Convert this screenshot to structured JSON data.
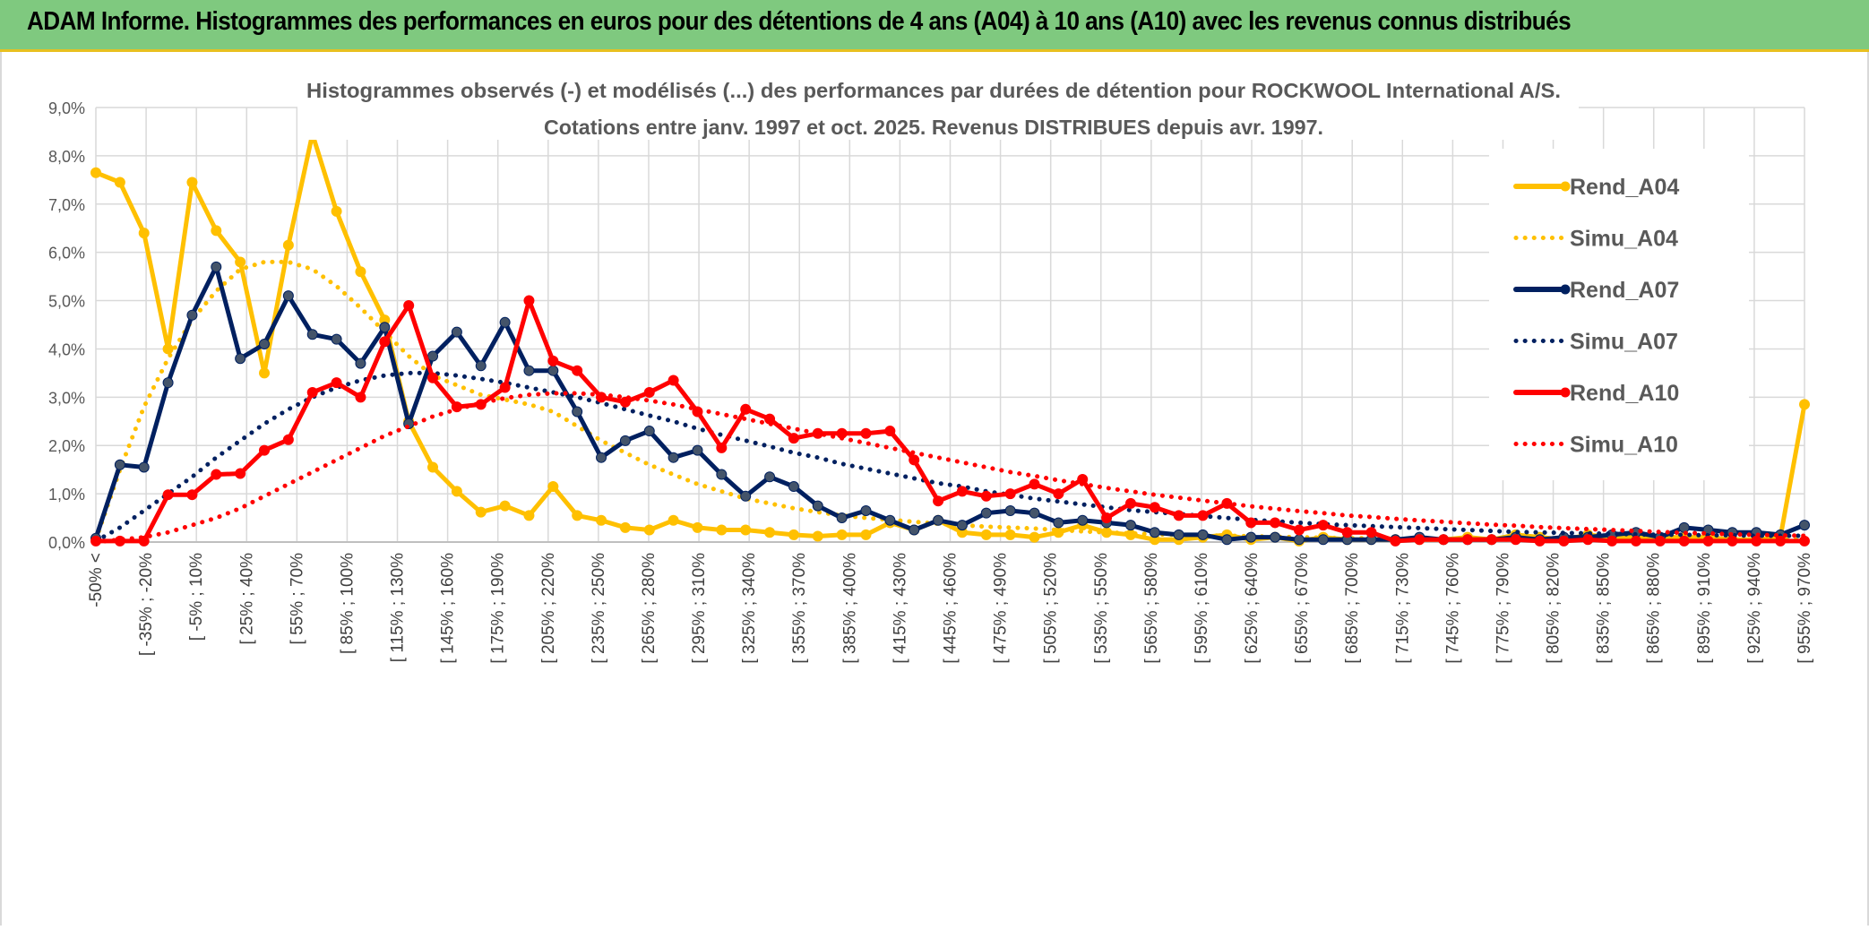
{
  "header": {
    "title": "ADAM Informe. Histogrammes des performances en euros pour des détentions de 4 ans (A04) à 10 ans (A10) avec les revenus connus distribués"
  },
  "chart_data": {
    "type": "line",
    "title": "Histogrammes observés (-) et modélisés (...) des performances par durées de détention pour ROCKWOOL International A/S.",
    "subtitle": "Cotations entre janv. 1997 et oct. 2025. Revenus DISTRIBUES depuis avr. 1997.",
    "xlabel": "",
    "ylabel": "",
    "ylim": [
      0,
      9
    ],
    "yticks": [
      "0,0%",
      "1,0%",
      "2,0%",
      "3,0%",
      "4,0%",
      "5,0%",
      "6,0%",
      "7,0%",
      "8,0%",
      "9,0%"
    ],
    "grid": true,
    "legend_position": "right",
    "x_tick_labels": [
      "-50% <",
      "[ -35% ; -20%",
      "[ -5% ; 10%",
      "[ 25% ; 40%",
      "[ 55% ; 70%",
      "[ 85% ; 100%",
      "[ 115% ; 130%",
      "[ 145% ; 160%",
      "[ 175% ; 190%",
      "[ 205% ; 220%",
      "[ 235% ; 250%",
      "[ 265% ; 280%",
      "[ 295% ; 310%",
      "[ 325% ; 340%",
      "[ 355% ; 370%",
      "[ 385% ; 400%",
      "[ 415% ; 430%",
      "[ 445% ; 460%",
      "[ 475% ; 490%",
      "[ 505% ; 520%",
      "[ 535% ; 550%",
      "[ 565% ; 580%",
      "[ 595% ; 610%",
      "[ 625% ; 640%",
      "[ 655% ; 670%",
      "[ 685% ; 700%",
      "[ 715% ; 730%",
      "[ 745% ; 760%",
      "[ 775% ; 790%",
      "[ 805% ; 820%",
      "[ 835% ; 850%",
      "[ 865% ; 880%",
      "[ 895% ; 910%",
      "[ 925% ; 940%",
      "[ 955% ; 970%"
    ],
    "series": [
      {
        "name": "Rend_A04",
        "color": "#ffc000",
        "style": "solid",
        "markers": true,
        "values": [
          7.65,
          7.45,
          6.4,
          4.0,
          7.45,
          6.45,
          5.8,
          3.5,
          6.15,
          8.45,
          6.85,
          5.6,
          4.6,
          2.5,
          1.55,
          1.05,
          0.62,
          0.75,
          0.55,
          1.15,
          0.55,
          0.45,
          0.3,
          0.25,
          0.45,
          0.3,
          0.25,
          0.25,
          0.2,
          0.15,
          0.12,
          0.15,
          0.15,
          0.4,
          0.25,
          0.45,
          0.2,
          0.15,
          0.15,
          0.1,
          0.2,
          0.35,
          0.2,
          0.15,
          0.05,
          0.05,
          0.1,
          0.15,
          0.05,
          0.1,
          0.02,
          0.1,
          0.05,
          0.05,
          0.05,
          0.05,
          0.05,
          0.1,
          0.05,
          0.15,
          0.1,
          0.05,
          0.15,
          0.1,
          0.1,
          0.1,
          0.1,
          0.1,
          0.05,
          0.05,
          0.1,
          2.85
        ]
      },
      {
        "name": "Simu_A04",
        "color": "#ffc000",
        "style": "dotted",
        "markers": false,
        "values": [
          0.05,
          1.5,
          2.8,
          3.8,
          4.6,
          5.2,
          5.65,
          5.8,
          5.8,
          5.65,
          5.3,
          4.85,
          4.35,
          3.85,
          3.45,
          3.25,
          3.05,
          2.95,
          2.85,
          2.7,
          2.4,
          2.1,
          1.85,
          1.6,
          1.4,
          1.2,
          1.05,
          0.9,
          0.8,
          0.7,
          0.62,
          0.55,
          0.5,
          0.46,
          0.42,
          0.38,
          0.35,
          0.32,
          0.3,
          0.28,
          0.25,
          0.22,
          0.2,
          0.18,
          0.16,
          0.15,
          0.14,
          0.13,
          0.12,
          0.11,
          0.1,
          0.09,
          0.08,
          0.08,
          0.07,
          0.07,
          0.06,
          0.06,
          0.05,
          0.05,
          0.05,
          0.05,
          0.05,
          0.05,
          0.05,
          0.05,
          0.05,
          0.05,
          0.05,
          0.05,
          0.05,
          0.05
        ]
      },
      {
        "name": "Rend_A07",
        "color": "#002060",
        "style": "solid",
        "markers": true,
        "values": [
          0.08,
          1.6,
          1.55,
          3.3,
          4.7,
          5.7,
          3.8,
          4.1,
          5.1,
          4.3,
          4.2,
          3.7,
          4.45,
          2.45,
          3.85,
          4.35,
          3.65,
          4.55,
          3.55,
          3.55,
          2.7,
          1.75,
          2.1,
          2.3,
          1.75,
          1.9,
          1.4,
          0.95,
          1.35,
          1.15,
          0.75,
          0.5,
          0.65,
          0.45,
          0.25,
          0.45,
          0.35,
          0.6,
          0.65,
          0.6,
          0.4,
          0.45,
          0.4,
          0.35,
          0.2,
          0.15,
          0.15,
          0.05,
          0.1,
          0.1,
          0.05,
          0.05,
          0.05,
          0.05,
          0.05,
          0.1,
          0.05,
          0.05,
          0.05,
          0.1,
          0.05,
          0.1,
          0.1,
          0.15,
          0.2,
          0.1,
          0.3,
          0.25,
          0.2,
          0.2,
          0.15,
          0.35
        ]
      },
      {
        "name": "Simu_A07",
        "color": "#002060",
        "style": "dotted",
        "markers": false,
        "values": [
          0.02,
          0.3,
          0.65,
          1.0,
          1.35,
          1.75,
          2.1,
          2.45,
          2.75,
          3.0,
          3.2,
          3.35,
          3.45,
          3.5,
          3.5,
          3.45,
          3.38,
          3.3,
          3.2,
          3.1,
          3.0,
          2.88,
          2.75,
          2.62,
          2.5,
          2.35,
          2.22,
          2.1,
          1.98,
          1.85,
          1.75,
          1.62,
          1.52,
          1.42,
          1.32,
          1.22,
          1.15,
          1.05,
          0.98,
          0.9,
          0.84,
          0.78,
          0.72,
          0.66,
          0.62,
          0.58,
          0.54,
          0.5,
          0.46,
          0.43,
          0.4,
          0.37,
          0.35,
          0.33,
          0.31,
          0.29,
          0.27,
          0.25,
          0.23,
          0.21,
          0.2,
          0.19,
          0.18,
          0.17,
          0.16,
          0.15,
          0.15,
          0.14,
          0.14,
          0.13,
          0.13,
          0.13
        ]
      },
      {
        "name": "Rend_A10",
        "color": "#ff0000",
        "style": "solid",
        "markers": true,
        "values": [
          0.02,
          0.02,
          0.02,
          0.98,
          0.98,
          1.4,
          1.42,
          1.9,
          2.12,
          3.1,
          3.3,
          3.0,
          4.15,
          4.9,
          3.4,
          2.8,
          2.85,
          3.2,
          5.0,
          3.75,
          3.55,
          3.0,
          2.9,
          3.1,
          3.35,
          2.7,
          1.95,
          2.75,
          2.55,
          2.15,
          2.25,
          2.25,
          2.25,
          2.3,
          1.7,
          0.85,
          1.05,
          0.95,
          1.0,
          1.2,
          1.0,
          1.3,
          0.5,
          0.8,
          0.72,
          0.55,
          0.55,
          0.8,
          0.4,
          0.4,
          0.25,
          0.35,
          0.2,
          0.2,
          0.02,
          0.05,
          0.05,
          0.05,
          0.05,
          0.05,
          0.02,
          0.02,
          0.05,
          0.02,
          0.02,
          0.02,
          0.02,
          0.02,
          0.02,
          0.02,
          0.02,
          0.02
        ]
      },
      {
        "name": "Simu_A10",
        "color": "#ff0000",
        "style": "dotted",
        "markers": false,
        "values": [
          0.0,
          0.05,
          0.1,
          0.2,
          0.35,
          0.5,
          0.7,
          0.95,
          1.2,
          1.45,
          1.7,
          1.95,
          2.2,
          2.4,
          2.6,
          2.75,
          2.88,
          2.98,
          3.05,
          3.08,
          3.08,
          3.05,
          3.0,
          2.93,
          2.85,
          2.75,
          2.65,
          2.55,
          2.45,
          2.35,
          2.25,
          2.15,
          2.05,
          1.95,
          1.85,
          1.75,
          1.65,
          1.55,
          1.45,
          1.37,
          1.28,
          1.2,
          1.12,
          1.05,
          0.98,
          0.92,
          0.86,
          0.8,
          0.74,
          0.69,
          0.64,
          0.6,
          0.55,
          0.52,
          0.48,
          0.45,
          0.42,
          0.39,
          0.36,
          0.34,
          0.31,
          0.29,
          0.27,
          0.25,
          0.23,
          0.21,
          0.19,
          0.18,
          0.16,
          0.15,
          0.14,
          0.13
        ]
      }
    ]
  }
}
